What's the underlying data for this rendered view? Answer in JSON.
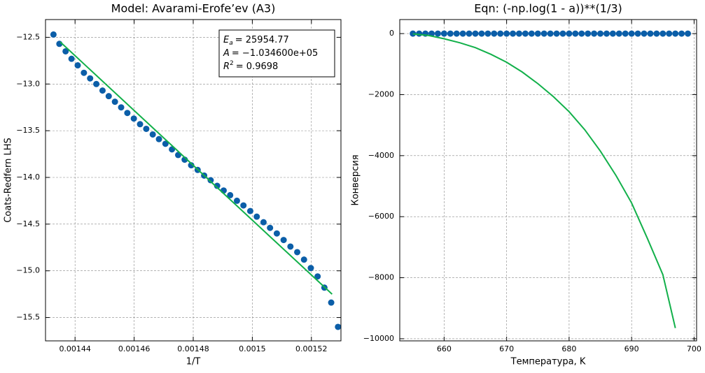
{
  "chart_data": [
    {
      "type": "scatter",
      "title": "Model: Avarami-Erofe’ev (A3)",
      "xlabel": "1/T",
      "ylabel": "Coats-Redfern LHS",
      "xlim": [
        0.00143,
        0.00153
      ],
      "ylim": [
        -15.75,
        -12.31
      ],
      "xticks": [
        0.00144,
        0.00146,
        0.00148,
        0.0015,
        0.00152
      ],
      "yticks": [
        {
          "value": -12.5,
          "label": "−12.5"
        },
        {
          "value": -13,
          "label": "−13.0"
        },
        {
          "value": -13.5,
          "label": "−13.5"
        },
        {
          "value": -14,
          "label": "−14.0"
        },
        {
          "value": -14.5,
          "label": "−14.5"
        },
        {
          "value": -15,
          "label": "−15.0"
        },
        {
          "value": -15.5,
          "label": "−15.5"
        }
      ],
      "grid": true,
      "annotation": [
        {
          "var": "E",
          "sub": "a",
          "text": "= 25954.77"
        },
        {
          "var": "A",
          "text": "= −1.034600e+05"
        },
        {
          "var": "R",
          "sup": "2",
          "text": "= 0.9698"
        }
      ],
      "series": [
        {
          "mode": "markers",
          "color": "#0b5ea8",
          "x": [
            0.0014327,
            0.0014347,
            0.0014368,
            0.0014388,
            0.0014409,
            0.001443,
            0.0014451,
            0.0014472,
            0.0014493,
            0.0014514,
            0.0014535,
            0.0014556,
            0.0014577,
            0.0014599,
            0.001462,
            0.0014641,
            0.0014663,
            0.0014684,
            0.0014706,
            0.0014728,
            0.0014749,
            0.0014771,
            0.0014793,
            0.0014815,
            0.0014837,
            0.0014859,
            0.0014881,
            0.0014903,
            0.0014925,
            0.0014948,
            0.001497,
            0.0014993,
            0.0015015,
            0.0015038,
            0.001506,
            0.0015083,
            0.0015106,
            0.0015129,
            0.0015152,
            0.0015175,
            0.0015198,
            0.0015221,
            0.0015244,
            0.0015267,
            0.001529
          ],
          "values": [
            -12.47,
            -12.57,
            -12.65,
            -12.73,
            -12.8,
            -12.88,
            -12.94,
            -13,
            -13.07,
            -13.13,
            -13.19,
            -13.25,
            -13.31,
            -13.37,
            -13.43,
            -13.48,
            -13.54,
            -13.59,
            -13.64,
            -13.7,
            -13.76,
            -13.81,
            -13.87,
            -13.92,
            -13.98,
            -14.03,
            -14.09,
            -14.14,
            -14.19,
            -14.25,
            -14.3,
            -14.36,
            -14.42,
            -14.48,
            -14.54,
            -14.6,
            -14.67,
            -14.74,
            -14.8,
            -14.88,
            -14.97,
            -15.06,
            -15.18,
            -15.34,
            -15.6
          ]
        },
        {
          "mode": "line",
          "color": "#12b04a",
          "x": [
            0.001435,
            0.001527
          ],
          "values": [
            -12.55,
            -15.25
          ]
        }
      ]
    },
    {
      "type": "scatter",
      "title": "Eqn: (-np.log(1 - a))**(1/3)",
      "xlabel": "Температура, K",
      "ylabel": "Конверсия",
      "xlim": [
        652.9,
        700.4
      ],
      "ylim": [
        -10070,
        460
      ],
      "xticks": [
        660,
        670,
        680,
        690,
        700
      ],
      "yticks": [
        0,
        {
          "value": -2000,
          "label": "−2000"
        },
        {
          "value": -4000,
          "label": "−4000"
        },
        {
          "value": -6000,
          "label": "−6000"
        },
        {
          "value": -8000,
          "label": "−8000"
        },
        {
          "value": -10000,
          "label": "−10000"
        }
      ],
      "grid": true,
      "series": [
        {
          "mode": "markers",
          "color": "#0b5ea8",
          "x": [
            655,
            656,
            657,
            658,
            659,
            660,
            661,
            662,
            663,
            664,
            665,
            666,
            667,
            668,
            669,
            670,
            671,
            672,
            673,
            674,
            675,
            676,
            677,
            678,
            679,
            680,
            681,
            682,
            683,
            684,
            685,
            686,
            687,
            688,
            689,
            690,
            691,
            692,
            693,
            694,
            695,
            696,
            697,
            698,
            699
          ],
          "values": [
            0,
            0,
            0,
            0,
            0,
            0,
            0,
            0,
            0,
            0,
            0,
            0,
            0,
            0,
            0,
            0,
            0,
            0,
            0,
            0,
            0,
            0,
            0,
            0,
            0,
            0,
            0,
            0,
            0,
            0,
            0,
            0,
            0,
            0,
            0,
            0,
            0,
            0,
            0,
            0,
            0,
            0,
            0,
            0,
            0
          ]
        },
        {
          "mode": "line",
          "color": "#12b04a",
          "x": [
            655,
            657.5,
            660,
            662.5,
            665,
            667.5,
            670,
            672.5,
            675,
            677.5,
            680,
            682.5,
            685,
            687.5,
            690,
            692.5,
            695,
            697
          ],
          "values": [
            -10,
            -60,
            -170,
            -300,
            -460,
            -680,
            -940,
            -1260,
            -1640,
            -2070,
            -2560,
            -3150,
            -3850,
            -4650,
            -5550,
            -6700,
            -7900,
            -9650
          ]
        }
      ]
    }
  ]
}
